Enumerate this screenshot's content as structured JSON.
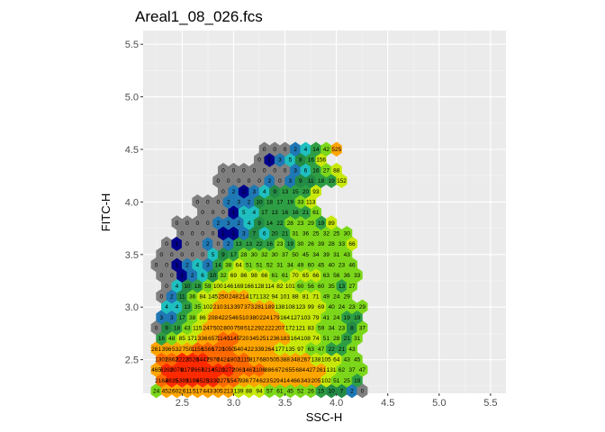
{
  "chart_data": {
    "type": "heatmap",
    "subtype": "hexbin",
    "title": "Areal1_08_026.fcs",
    "xlabel": "SSC-H",
    "ylabel": "FITC-H",
    "xlim": [
      2.12,
      5.65
    ],
    "ylim": [
      2.18,
      5.63
    ],
    "x_ticks": [
      "2.5",
      "3.0",
      "3.5",
      "4.0",
      "4.5",
      "5.0",
      "5.5"
    ],
    "y_ticks": [
      "2.5",
      "3.0",
      "3.5",
      "4.0",
      "4.5",
      "5.0",
      "5.5"
    ],
    "grid": true,
    "legend": "none",
    "colors": {
      "panel": "#ebebeb",
      "grid_major": "#ffffff",
      "grid_minor": "#f5f5f5",
      "zero": "#7f7f7f",
      "palette": [
        "#00008b",
        "#1f78b4",
        "#1fbfbf",
        "#238b45",
        "#2e9e44",
        "#7cd71a",
        "#c8e80a",
        "#ffa500",
        "#ff6a00",
        "#ff2a00"
      ]
    },
    "hex": {
      "x0": 2.248,
      "dx": 0.1002,
      "y0": 2.404,
      "dy": 0.0999
    },
    "rows": [
      {
        "r": -2,
        "c0": 0,
        "counts": [
          24,
          452,
          602,
          611,
          517,
          443,
          305,
          213,
          139,
          88,
          94,
          57,
          61,
          45,
          52,
          26,
          15,
          10,
          7,
          2,
          0
        ]
      },
      {
        "r": -1,
        "c0": 0,
        "counts": [
          2162,
          4835,
          5393,
          5199,
          4525,
          3330,
          2275,
          1547,
          936,
          774,
          623,
          529,
          414,
          466,
          343,
          205,
          102,
          51,
          25,
          19
        ]
      },
      {
        "r": 0,
        "c0": 0,
        "counts": [
          465,
          6392,
          8078,
          8179,
          7667,
          6214,
          4520,
          3272,
          2063,
          1467,
          1106,
          886,
          672,
          655,
          684,
          427,
          261,
          131,
          62,
          37,
          47
        ]
      },
      {
        "r": 1,
        "c0": 0,
        "counts": [
          1301,
          2862,
          3222,
          3526,
          3447,
          2976,
          2424,
          1802,
          1115,
          817,
          680,
          505,
          388,
          348,
          267,
          138,
          105,
          64,
          43,
          45
        ]
      },
      {
        "r": 2,
        "c0": 0,
        "counts": [
          261,
          396,
          532,
          750,
          1156,
          1566,
          1720,
          1050,
          540,
          422,
          339,
          264,
          177,
          135,
          97,
          63,
          47,
          22,
          21,
          43
        ]
      },
      {
        "r": 3,
        "c0": 0,
        "counts": [
          16,
          48,
          85,
          171,
          336,
          657,
          1140,
          1145,
          720,
          345,
          251,
          236,
          183,
          164,
          108,
          74,
          51,
          28,
          21,
          31
        ]
      },
      {
        "r": 4,
        "c0": 0,
        "counts": [
          0,
          9,
          18,
          43,
          115,
          247,
          502,
          800,
          759,
          512,
          292,
          222,
          207,
          172,
          121,
          83,
          59,
          34,
          23,
          8,
          37
        ]
      },
      {
        "r": 5,
        "c0": 0,
        "counts": [
          3,
          3,
          17,
          38,
          86,
          208,
          422,
          546,
          510,
          380,
          224,
          179,
          164,
          127,
          103,
          79,
          41,
          24,
          19,
          19
        ]
      },
      {
        "r": 6,
        "c0": 1,
        "counts": [
          4,
          4,
          13,
          35,
          102,
          210,
          313,
          397,
          373,
          281,
          189,
          138,
          108,
          123,
          99,
          69,
          40,
          24,
          23,
          29
        ]
      },
      {
        "r": 7,
        "c0": 0,
        "counts": [
          0,
          2,
          11,
          36,
          84,
          145,
          250,
          248,
          214,
          171,
          132,
          94,
          101,
          88,
          81,
          71,
          49,
          24,
          29
        ]
      },
      {
        "r": 8,
        "c0": 1,
        "counts": [
          0,
          4,
          10,
          18,
          59,
          100,
          146,
          169,
          166,
          128,
          114,
          82,
          101,
          60,
          56,
          60,
          35,
          13,
          27
        ]
      },
      {
        "r": 9,
        "c0": 0,
        "counts": [
          0,
          0,
          1,
          2,
          6,
          10,
          32,
          69,
          86,
          98,
          66,
          61,
          61,
          70,
          65,
          66,
          63,
          56,
          36,
          33
        ]
      },
      {
        "r": 10,
        "c0": 0,
        "counts": [
          0,
          0,
          1,
          2,
          4,
          3,
          14,
          38,
          64,
          51,
          51,
          52,
          31,
          34,
          49,
          60,
          45,
          40,
          23,
          46
        ]
      },
      {
        "r": 11,
        "c0": 0,
        "counts": [
          0,
          0,
          0,
          0,
          0,
          5,
          9,
          17,
          28,
          30,
          32,
          30,
          37,
          50,
          45,
          34,
          39,
          31,
          43
        ]
      },
      {
        "r": 12,
        "c0": 1,
        "counts": [
          0,
          1,
          0,
          0,
          2,
          0,
          2,
          13,
          13,
          22,
          16,
          23,
          19,
          30,
          26,
          39,
          28,
          33,
          66
        ]
      },
      {
        "r": 13,
        "c0": 2,
        "counts": [
          0,
          0,
          0,
          0,
          1,
          1,
          3,
          7,
          6,
          20,
          21,
          31,
          36,
          25,
          32,
          25,
          30
        ]
      },
      {
        "r": 14,
        "c0": 2,
        "counts": [
          0,
          0,
          0,
          0,
          2,
          3,
          2,
          4,
          9,
          14,
          22,
          28,
          23,
          29,
          19,
          89
        ]
      },
      {
        "r": 15,
        "c0": 4,
        "counts": [
          0,
          0,
          0,
          1,
          5,
          4,
          17,
          13,
          16,
          16,
          21,
          61
        ]
      },
      {
        "r": 16,
        "c0": 4,
        "counts": [
          0,
          0,
          0,
          2,
          3,
          2,
          10,
          18,
          17,
          19,
          33,
          113
        ]
      },
      {
        "r": 17,
        "c0": 6,
        "counts": [
          0,
          2,
          1,
          3,
          4,
          9,
          13,
          15,
          20,
          93
        ]
      },
      {
        "r": 18,
        "c0": 6,
        "counts": [
          0,
          0,
          0,
          0,
          0,
          2,
          0,
          3,
          9,
          11,
          18,
          19,
          152
        ]
      },
      {
        "r": 19,
        "c0": 6,
        "counts": [
          0,
          0,
          0,
          0,
          0,
          0,
          0,
          3,
          6,
          16,
          27,
          88
        ]
      },
      {
        "r": 20,
        "c0": 10,
        "counts": [
          0,
          1,
          3,
          5,
          8,
          16,
          156
        ]
      },
      {
        "r": 21,
        "c0": 10,
        "counts": [
          0,
          0,
          0,
          2,
          4,
          14,
          42,
          525
        ]
      }
    ]
  }
}
